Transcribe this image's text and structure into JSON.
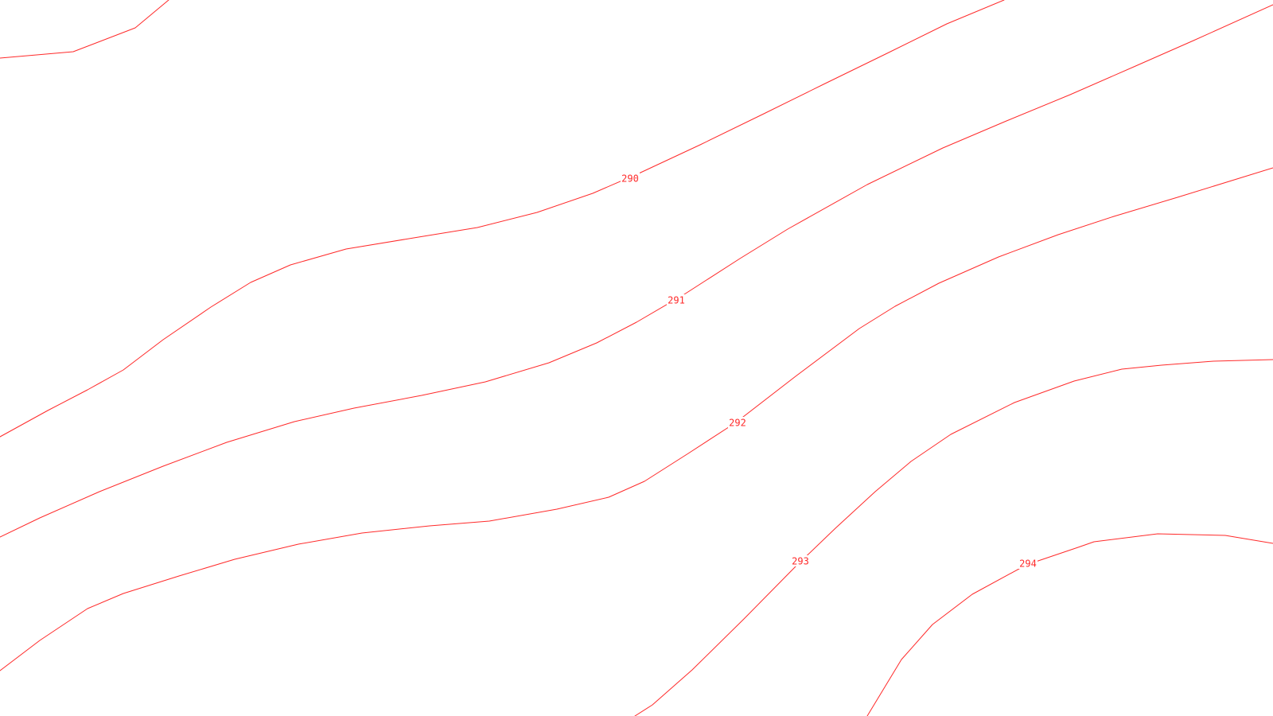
{
  "map": {
    "line_color": "#ff2a2a",
    "background": "#ffffff",
    "contours": [
      {
        "elevation": "290",
        "label": "290"
      },
      {
        "elevation": "291",
        "label": "291"
      },
      {
        "elevation": "292",
        "label": "292"
      },
      {
        "elevation": "293",
        "label": "293"
      },
      {
        "elevation": "294",
        "label": "294"
      }
    ]
  }
}
